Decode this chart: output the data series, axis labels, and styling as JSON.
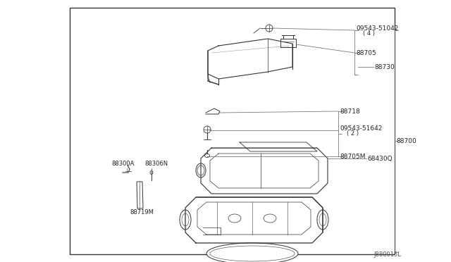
{
  "bg_color": "#ffffff",
  "border_color": "#333333",
  "line_color": "#777777",
  "text_color": "#222222",
  "diagram_color": "#333333",
  "font_size": 6.5,
  "watermark": "J880015L",
  "border": [
    0.155,
    0.03,
    0.875,
    0.97
  ]
}
